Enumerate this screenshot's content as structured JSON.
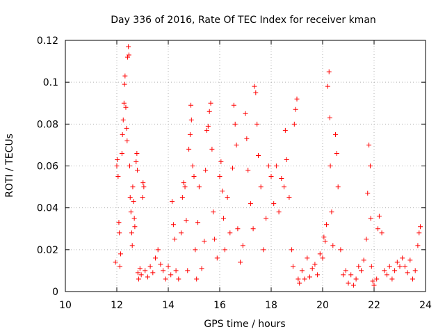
{
  "chart_data": {
    "type": "scatter",
    "title": "Day 336 of 2016, Rate Of TEC Index for receiver kman",
    "xlabel": "GPS time / hours",
    "ylabel": "ROTI / TECUs",
    "xlim": [
      10,
      24
    ],
    "ylim": [
      0,
      0.12
    ],
    "xticks": [
      10,
      12,
      14,
      16,
      18,
      20,
      22,
      24
    ],
    "yticks": [
      0,
      0.02,
      0.04,
      0.06,
      0.08,
      0.1,
      0.12
    ],
    "xtick_labels": [
      "10",
      "12",
      "14",
      "16",
      "18",
      "20",
      "22",
      "24"
    ],
    "ytick_labels": [
      "0",
      "0.02",
      "0.04",
      "0.06",
      "0.08",
      "0.1",
      "0.12"
    ],
    "grid": true,
    "marker": "+",
    "color": "#ff0000",
    "series": [
      {
        "name": "ROTI",
        "points": [
          [
            11.95,
            0.014
          ],
          [
            12.0,
            0.06
          ],
          [
            12.02,
            0.063
          ],
          [
            12.05,
            0.055
          ],
          [
            12.08,
            0.033
          ],
          [
            12.1,
            0.028
          ],
          [
            12.12,
            0.012
          ],
          [
            12.15,
            0.018
          ],
          [
            12.2,
            0.066
          ],
          [
            12.22,
            0.075
          ],
          [
            12.25,
            0.082
          ],
          [
            12.28,
            0.09
          ],
          [
            12.3,
            0.099
          ],
          [
            12.32,
            0.103
          ],
          [
            12.35,
            0.088
          ],
          [
            12.38,
            0.078
          ],
          [
            12.4,
            0.072
          ],
          [
            12.42,
            0.112
          ],
          [
            12.45,
            0.117
          ],
          [
            12.47,
            0.113
          ],
          [
            12.5,
            0.06
          ],
          [
            12.52,
            0.045
          ],
          [
            12.55,
            0.038
          ],
          [
            12.58,
            0.028
          ],
          [
            12.6,
            0.022
          ],
          [
            12.62,
            0.05
          ],
          [
            12.65,
            0.043
          ],
          [
            12.68,
            0.035
          ],
          [
            12.7,
            0.031
          ],
          [
            12.75,
            0.062
          ],
          [
            12.78,
            0.066
          ],
          [
            12.8,
            0.058
          ],
          [
            12.82,
            0.009
          ],
          [
            12.85,
            0.006
          ],
          [
            12.9,
            0.011
          ],
          [
            12.95,
            0.008
          ],
          [
            13.0,
            0.045
          ],
          [
            13.02,
            0.052
          ],
          [
            13.05,
            0.05
          ],
          [
            13.1,
            0.01
          ],
          [
            13.2,
            0.007
          ],
          [
            13.3,
            0.012
          ],
          [
            13.4,
            0.009
          ],
          [
            13.5,
            0.016
          ],
          [
            13.6,
            0.02
          ],
          [
            13.7,
            0.013
          ],
          [
            13.8,
            0.01
          ],
          [
            13.9,
            0.006
          ],
          [
            14.0,
            0.012
          ],
          [
            14.1,
            0.008
          ],
          [
            14.15,
            0.043
          ],
          [
            14.2,
            0.032
          ],
          [
            14.25,
            0.025
          ],
          [
            14.3,
            0.01
          ],
          [
            14.4,
            0.006
          ],
          [
            14.5,
            0.028
          ],
          [
            14.55,
            0.045
          ],
          [
            14.6,
            0.052
          ],
          [
            14.65,
            0.05
          ],
          [
            14.7,
            0.034
          ],
          [
            14.75,
            0.01
          ],
          [
            14.8,
            0.068
          ],
          [
            14.85,
            0.075
          ],
          [
            14.88,
            0.089
          ],
          [
            14.9,
            0.082
          ],
          [
            14.95,
            0.06
          ],
          [
            15.0,
            0.055
          ],
          [
            15.05,
            0.02
          ],
          [
            15.1,
            0.006
          ],
          [
            15.15,
            0.033
          ],
          [
            15.2,
            0.05
          ],
          [
            15.3,
            0.011
          ],
          [
            15.4,
            0.024
          ],
          [
            15.45,
            0.058
          ],
          [
            15.5,
            0.077
          ],
          [
            15.55,
            0.079
          ],
          [
            15.6,
            0.086
          ],
          [
            15.65,
            0.09
          ],
          [
            15.7,
            0.068
          ],
          [
            15.75,
            0.038
          ],
          [
            15.8,
            0.025
          ],
          [
            15.9,
            0.016
          ],
          [
            16.0,
            0.055
          ],
          [
            16.05,
            0.062
          ],
          [
            16.1,
            0.048
          ],
          [
            16.15,
            0.035
          ],
          [
            16.2,
            0.02
          ],
          [
            16.3,
            0.045
          ],
          [
            16.4,
            0.028
          ],
          [
            16.5,
            0.059
          ],
          [
            16.55,
            0.089
          ],
          [
            16.6,
            0.08
          ],
          [
            16.65,
            0.07
          ],
          [
            16.7,
            0.03
          ],
          [
            16.8,
            0.014
          ],
          [
            16.9,
            0.022
          ],
          [
            17.0,
            0.085
          ],
          [
            17.05,
            0.073
          ],
          [
            17.1,
            0.058
          ],
          [
            17.2,
            0.042
          ],
          [
            17.3,
            0.03
          ],
          [
            17.35,
            0.098
          ],
          [
            17.4,
            0.095
          ],
          [
            17.45,
            0.08
          ],
          [
            17.5,
            0.065
          ],
          [
            17.6,
            0.05
          ],
          [
            17.7,
            0.02
          ],
          [
            17.8,
            0.035
          ],
          [
            17.9,
            0.06
          ],
          [
            18.0,
            0.055
          ],
          [
            18.1,
            0.042
          ],
          [
            18.2,
            0.06
          ],
          [
            18.3,
            0.038
          ],
          [
            18.4,
            0.054
          ],
          [
            18.5,
            0.05
          ],
          [
            18.55,
            0.077
          ],
          [
            18.6,
            0.063
          ],
          [
            18.7,
            0.045
          ],
          [
            18.8,
            0.02
          ],
          [
            18.85,
            0.012
          ],
          [
            18.9,
            0.08
          ],
          [
            18.95,
            0.087
          ],
          [
            19.0,
            0.092
          ],
          [
            19.05,
            0.006
          ],
          [
            19.1,
            0.004
          ],
          [
            19.2,
            0.01
          ],
          [
            19.3,
            0.006
          ],
          [
            19.4,
            0.016
          ],
          [
            19.5,
            0.007
          ],
          [
            19.6,
            0.011
          ],
          [
            19.7,
            0.013
          ],
          [
            19.8,
            0.008
          ],
          [
            19.9,
            0.018
          ],
          [
            20.0,
            0.016
          ],
          [
            20.05,
            0.026
          ],
          [
            20.1,
            0.024
          ],
          [
            20.15,
            0.032
          ],
          [
            20.2,
            0.098
          ],
          [
            20.25,
            0.105
          ],
          [
            20.28,
            0.083
          ],
          [
            20.3,
            0.06
          ],
          [
            20.35,
            0.038
          ],
          [
            20.4,
            0.022
          ],
          [
            20.5,
            0.075
          ],
          [
            20.55,
            0.066
          ],
          [
            20.6,
            0.05
          ],
          [
            20.7,
            0.02
          ],
          [
            20.8,
            0.008
          ],
          [
            20.9,
            0.01
          ],
          [
            21.0,
            0.004
          ],
          [
            21.1,
            0.008
          ],
          [
            21.2,
            0.003
          ],
          [
            21.3,
            0.006
          ],
          [
            21.4,
            0.012
          ],
          [
            21.5,
            0.01
          ],
          [
            21.6,
            0.015
          ],
          [
            21.7,
            0.025
          ],
          [
            21.75,
            0.047
          ],
          [
            21.8,
            0.07
          ],
          [
            21.85,
            0.06
          ],
          [
            21.87,
            0.035
          ],
          [
            21.9,
            0.012
          ],
          [
            21.95,
            0.005
          ],
          [
            22.0,
            0.003
          ],
          [
            22.1,
            0.006
          ],
          [
            22.15,
            0.03
          ],
          [
            22.2,
            0.036
          ],
          [
            22.3,
            0.028
          ],
          [
            22.4,
            0.01
          ],
          [
            22.5,
            0.008
          ],
          [
            22.6,
            0.012
          ],
          [
            22.7,
            0.006
          ],
          [
            22.8,
            0.01
          ],
          [
            22.9,
            0.014
          ],
          [
            23.0,
            0.012
          ],
          [
            23.1,
            0.016
          ],
          [
            23.2,
            0.012
          ],
          [
            23.3,
            0.009
          ],
          [
            23.4,
            0.015
          ],
          [
            23.5,
            0.006
          ],
          [
            23.6,
            0.01
          ],
          [
            23.7,
            0.022
          ],
          [
            23.75,
            0.028
          ],
          [
            23.8,
            0.031
          ]
        ]
      }
    ]
  }
}
